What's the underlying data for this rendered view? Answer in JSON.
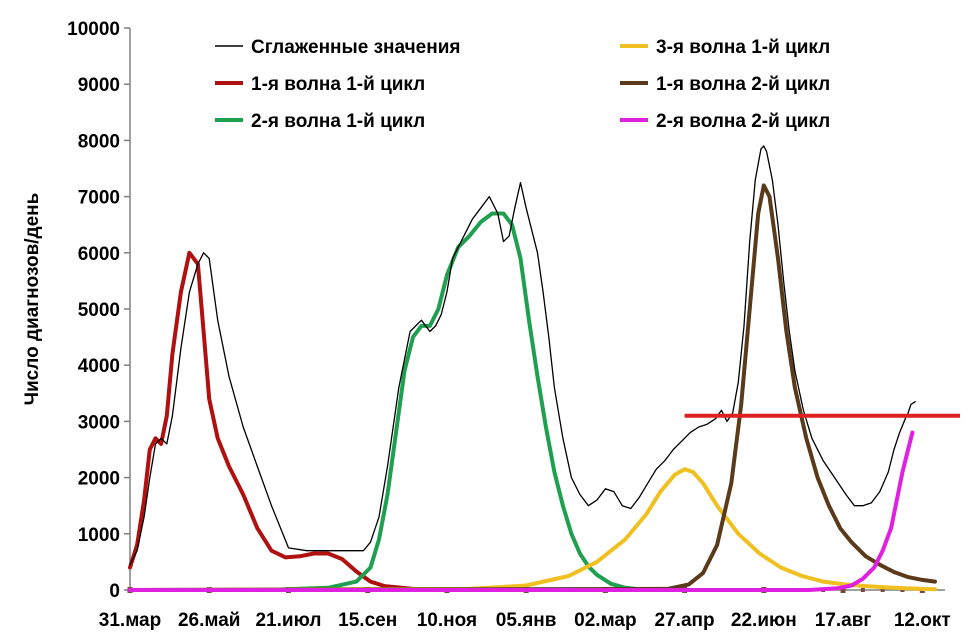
{
  "chart_data": {
    "type": "line",
    "title": "",
    "xlabel": "",
    "ylabel": "Число диагнозов/день",
    "ylim": [
      0,
      10000
    ],
    "xlim": [
      0,
      569
    ],
    "x_tick_labels": [
      "31.мар",
      "26.май",
      "21.июл",
      "15.сен",
      "10.ноя",
      "05.янв",
      "02.мар",
      "27.апр",
      "22.июн",
      "17.авг",
      "12.окт"
    ],
    "x_tick_values": [
      0,
      56,
      112,
      168,
      224,
      280,
      336,
      392,
      448,
      504,
      560
    ],
    "y_ticks": [
      0,
      1000,
      2000,
      3000,
      4000,
      5000,
      6000,
      7000,
      8000,
      9000,
      10000
    ],
    "grid": false,
    "legend_position": "top",
    "threshold_line": {
      "y": 3100,
      "x_range": [
        392,
        569
      ],
      "color": "#e02020"
    },
    "series": [
      {
        "name": "Сглаженные значения",
        "color": "#000000",
        "width": 1.3,
        "x": [
          0,
          5,
          10,
          14,
          18,
          22,
          26,
          30,
          36,
          42,
          48,
          52,
          56,
          62,
          70,
          80,
          90,
          100,
          112,
          125,
          140,
          155,
          165,
          170,
          176,
          182,
          190,
          198,
          206,
          212,
          216,
          220,
          224,
          228,
          232,
          236,
          242,
          248,
          254,
          260,
          264,
          268,
          272,
          276,
          280,
          284,
          288,
          292,
          296,
          300,
          306,
          312,
          318,
          324,
          330,
          336,
          342,
          348,
          354,
          360,
          366,
          372,
          378,
          384,
          390,
          396,
          402,
          408,
          414,
          418,
          422,
          426,
          430,
          434,
          438,
          442,
          446,
          448,
          450,
          454,
          458,
          462,
          466,
          470,
          476,
          482,
          490,
          498,
          506,
          512,
          518,
          524,
          530,
          536,
          540,
          544,
          548,
          550,
          552,
          555
        ],
        "y": [
          450,
          700,
          1300,
          2000,
          2600,
          2700,
          2600,
          3100,
          4300,
          5300,
          5800,
          6000,
          5900,
          4800,
          3800,
          2900,
          2200,
          1500,
          750,
          700,
          700,
          700,
          700,
          850,
          1300,
          2200,
          3600,
          4600,
          4800,
          4600,
          4700,
          4900,
          5300,
          5900,
          6100,
          6300,
          6600,
          6800,
          7000,
          6700,
          6200,
          6300,
          6800,
          7250,
          6800,
          6400,
          6000,
          5300,
          4500,
          3600,
          2700,
          2000,
          1700,
          1500,
          1600,
          1800,
          1750,
          1500,
          1450,
          1650,
          1900,
          2150,
          2300,
          2500,
          2650,
          2800,
          2900,
          2950,
          3050,
          3200,
          3000,
          3150,
          3700,
          4700,
          6200,
          7300,
          7850,
          7900,
          7800,
          7300,
          6500,
          5500,
          4600,
          3900,
          3200,
          2700,
          2300,
          2000,
          1700,
          1500,
          1500,
          1550,
          1750,
          2100,
          2500,
          2800,
          3050,
          3150,
          3300,
          3350
        ]
      },
      {
        "name": "1-я волна 1-й цикл",
        "color": "#b01010",
        "width": 4,
        "x": [
          0,
          5,
          10,
          14,
          18,
          22,
          26,
          30,
          36,
          42,
          48,
          52,
          56,
          62,
          70,
          80,
          90,
          100,
          110,
          120,
          130,
          140,
          150,
          160,
          170,
          180,
          200,
          230,
          260
        ],
        "y": [
          400,
          800,
          1600,
          2500,
          2700,
          2600,
          3100,
          4200,
          5300,
          6000,
          5800,
          4600,
          3400,
          2700,
          2200,
          1700,
          1100,
          700,
          580,
          600,
          650,
          650,
          550,
          330,
          150,
          70,
          20,
          5,
          0
        ]
      },
      {
        "name": "2-я волна 1-й цикл",
        "color": "#1fa050",
        "width": 4,
        "x": [
          0,
          100,
          140,
          160,
          170,
          176,
          182,
          188,
          194,
          200,
          206,
          212,
          218,
          224,
          232,
          240,
          248,
          256,
          264,
          270,
          276,
          282,
          288,
          294,
          300,
          306,
          312,
          318,
          324,
          330,
          340,
          350,
          360,
          380,
          400
        ],
        "y": [
          0,
          5,
          40,
          150,
          400,
          900,
          1700,
          2800,
          3900,
          4500,
          4700,
          4700,
          5000,
          5600,
          6100,
          6300,
          6550,
          6700,
          6700,
          6500,
          5900,
          4800,
          3800,
          2900,
          2100,
          1500,
          1000,
          650,
          420,
          270,
          110,
          40,
          15,
          3,
          0
        ]
      },
      {
        "name": "3-я волна 1-й цикл",
        "color": "#f0c020",
        "width": 4,
        "x": [
          0,
          240,
          280,
          310,
          330,
          350,
          365,
          375,
          385,
          392,
          398,
          405,
          415,
          430,
          445,
          460,
          475,
          490,
          505,
          520,
          540,
          560,
          569
        ],
        "y": [
          0,
          20,
          80,
          250,
          500,
          900,
          1350,
          1750,
          2050,
          2150,
          2100,
          1900,
          1500,
          1000,
          650,
          400,
          250,
          150,
          100,
          70,
          40,
          20,
          15
        ]
      },
      {
        "name": "1-я волна 2-й цикл",
        "color": "#5a3a1a",
        "width": 4,
        "x": [
          0,
          380,
          395,
          405,
          415,
          425,
          432,
          438,
          444,
          448,
          452,
          458,
          464,
          470,
          478,
          486,
          494,
          502,
          510,
          520,
          530,
          540,
          550,
          560,
          569
        ],
        "y": [
          0,
          20,
          100,
          300,
          800,
          1900,
          3300,
          5000,
          6700,
          7200,
          7000,
          5900,
          4600,
          3600,
          2700,
          2000,
          1500,
          1100,
          850,
          600,
          450,
          320,
          230,
          180,
          150
        ]
      },
      {
        "name": "2-я волна 2-й цикл",
        "color": "#e020e0",
        "width": 4,
        "x": [
          0,
          480,
          500,
          510,
          518,
          526,
          532,
          538,
          542,
          546,
          550,
          553
        ],
        "y": [
          0,
          0,
          30,
          80,
          200,
          400,
          700,
          1100,
          1600,
          2100,
          2500,
          2800
        ]
      }
    ]
  }
}
